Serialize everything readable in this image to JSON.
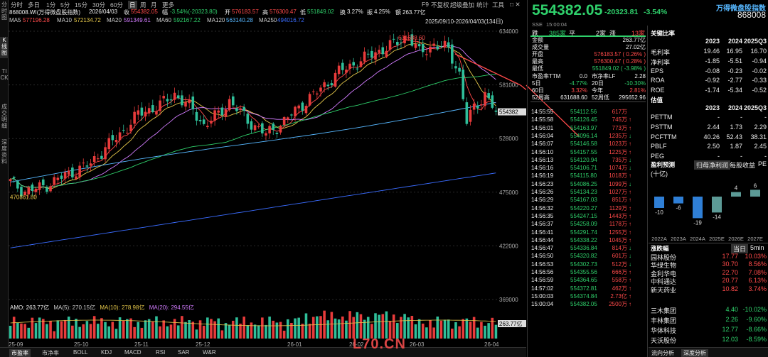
{
  "left_bar": [
    {
      "label": "分时图",
      "active": false
    },
    {
      "label": "K线图",
      "active": true
    },
    {
      "label": "TICK",
      "active": false
    },
    {
      "label": "成交明细",
      "active": false
    },
    {
      "label": "深度资料",
      "active": false
    }
  ],
  "toolbar": {
    "periods": [
      "分时",
      "多日",
      "1分",
      "5分",
      "15分",
      "30分",
      "60分",
      "日",
      "周",
      "月",
      "更多"
    ],
    "active_period": "日",
    "f9": "F9",
    "no_adjust": "不复权",
    "overlay": "超级叠加",
    "stats": "统计",
    "tools": "工具",
    "window_icons": "□ ✕"
  },
  "info_bar": {
    "code": "868008.WI(万得微盘股指数)",
    "date": "2026/04/03",
    "close_label": "收",
    "close": "554382.05",
    "change_label": "幅",
    "change": "-3.54%(-20323.80)",
    "open_label": "开",
    "open": "576183.57",
    "high_label": "高",
    "high": "576300.47",
    "low_label": "低",
    "low": "551849.02",
    "turnover_label": "换",
    "turnover": "3.27%",
    "amplitude_label": "振",
    "amplitude": "4.25%",
    "amount_label": "额",
    "amount": "263.77亿"
  },
  "ma_bar": [
    {
      "name": "MA5",
      "value": "577196.28",
      "color": "#ff4a4a"
    },
    {
      "name": "MA10",
      "value": "572134.72",
      "color": "#e6c84a"
    },
    {
      "name": "MA20",
      "value": "591349.61",
      "color": "#d27cff"
    },
    {
      "name": "MA60",
      "value": "592167.22",
      "color": "#2fd06b"
    },
    {
      "name": "MA120",
      "value": "563140.28",
      "color": "#56b7ff"
    },
    {
      "name": "MA250",
      "value": "494016.72",
      "color": "#3a6cff"
    }
  ],
  "range_label": "2025/09/10-2026/04/03(134日)",
  "chart_data": {
    "type": "candlestick",
    "y_ticks": [
      634000,
      581000,
      528000,
      475000,
      422000,
      369000
    ],
    "ylim": [
      369000,
      634000
    ],
    "high_marker": "631688.60",
    "low_marker": "470861.80",
    "last_price_label": "554382",
    "x_tick_labels": [
      "25-09",
      "25-10",
      "25-11",
      "25-12",
      "26-01",
      "26-02",
      "26-03",
      "26-04"
    ],
    "anchors": [
      {
        "i": 0,
        "p": 485000
      },
      {
        "i": 4,
        "p": 476000
      },
      {
        "i": 8,
        "p": 479000
      },
      {
        "i": 12,
        "p": 486000
      },
      {
        "i": 17,
        "p": 495000
      },
      {
        "i": 22,
        "p": 503000
      },
      {
        "i": 26,
        "p": 519000
      },
      {
        "i": 30,
        "p": 532000
      },
      {
        "i": 35,
        "p": 552000
      },
      {
        "i": 41,
        "p": 561000
      },
      {
        "i": 45,
        "p": 572000
      },
      {
        "i": 50,
        "p": 556000
      },
      {
        "i": 53,
        "p": 541000
      },
      {
        "i": 57,
        "p": 552000
      },
      {
        "i": 60,
        "p": 565000
      },
      {
        "i": 65,
        "p": 546000
      },
      {
        "i": 70,
        "p": 532000
      },
      {
        "i": 75,
        "p": 545000
      },
      {
        "i": 80,
        "p": 562000
      },
      {
        "i": 85,
        "p": 577000
      },
      {
        "i": 90,
        "p": 594000
      },
      {
        "i": 95,
        "p": 603000
      },
      {
        "i": 100,
        "p": 613000
      },
      {
        "i": 105,
        "p": 621000
      },
      {
        "i": 109,
        "p": 630000
      },
      {
        "i": 112,
        "p": 612000
      },
      {
        "i": 116,
        "p": 621000
      },
      {
        "i": 120,
        "p": 616000
      },
      {
        "i": 123,
        "p": 592000
      },
      {
        "i": 125,
        "p": 544000
      },
      {
        "i": 127,
        "p": 558000
      },
      {
        "i": 130,
        "p": 572000
      },
      {
        "i": 133,
        "p": 554382
      }
    ],
    "amo_label": "AMO: 263.77亿",
    "amo_ma5": "MA(5): 270.15亿",
    "amo_ma10": "MA(10): 278.98亿",
    "amo_ma20": "MA(20): 294.55亿",
    "amo_last_label": "263.77亿"
  },
  "bottom_tabs": [
    "市盈率",
    "市净率",
    "BOLL",
    "KDJ",
    "MACD",
    "RSI",
    "SAR",
    "W&R"
  ],
  "bottom_tabs_active": "市盈率",
  "quote": {
    "price": "554382.05",
    "change": "-20323.81",
    "pct": "-3.54%",
    "name": "万得微盘股指数",
    "code": "868008",
    "exchange": "SSE",
    "time": "15:00:04",
    "down_label": "跌",
    "down_count": "385家",
    "flat_label": "平",
    "flat_count": "2家",
    "up_label": "涨",
    "up_count": "13家",
    "rows": [
      {
        "k": "金额",
        "v": "263.77亿",
        "c": "white"
      },
      {
        "k": "成交量",
        "v": "27.02亿",
        "c": "white"
      },
      {
        "k": "开盘",
        "v": "576183.57 ( 0.26% )",
        "c": "red"
      },
      {
        "k": "最高",
        "v": "576300.47 ( 0.28% )",
        "c": "red"
      },
      {
        "k": "最低",
        "v": "551849.02 ( -3.98% )",
        "c": "green"
      }
    ],
    "grid": [
      {
        "k1": "市盈率TTM",
        "v1": "0.0",
        "c1": "white",
        "k2": "市净率LF",
        "v2": "2.28",
        "c2": "white"
      },
      {
        "k1": "5日",
        "v1": "-4.77%",
        "c1": "green",
        "k2": "20日",
        "v2": "-10.30%",
        "c2": "green"
      },
      {
        "k1": "60日",
        "v1": "3.32%",
        "c1": "red",
        "k2": "今年",
        "v2": "2.81%",
        "c2": "red"
      },
      {
        "k1": "52周高",
        "v1": "631688.60",
        "c1": "white",
        "k2": "52周低",
        "v2": "295652.96",
        "c2": "white"
      }
    ]
  },
  "ticks": [
    {
      "t": "14:55:55",
      "p": "554112.56",
      "v": "617万",
      "d": ""
    },
    {
      "t": "14:55:58",
      "p": "554126.45",
      "v": "745万",
      "d": "↑"
    },
    {
      "t": "14:56:01",
      "p": "554163.97",
      "v": "773万",
      "d": "↑"
    },
    {
      "t": "14:56:04",
      "p": "554096.14",
      "v": "1235万",
      "d": "↓"
    },
    {
      "t": "14:56:07",
      "p": "554146.58",
      "v": "1023万",
      "d": "↑"
    },
    {
      "t": "14:56:10",
      "p": "554157.55",
      "v": "1225万",
      "d": "↑"
    },
    {
      "t": "14:56:13",
      "p": "554120.94",
      "v": "735万",
      "d": "↓"
    },
    {
      "t": "14:56:16",
      "p": "554106.71",
      "v": "1074万",
      "d": "↓"
    },
    {
      "t": "14:56:19",
      "p": "554115.80",
      "v": "1018万",
      "d": "↑"
    },
    {
      "t": "14:56:23",
      "p": "554086.25",
      "v": "1099万",
      "d": "↓"
    },
    {
      "t": "14:56:26",
      "p": "554134.23",
      "v": "1027万",
      "d": "↑"
    },
    {
      "t": "14:56:29",
      "p": "554167.03",
      "v": "851万",
      "d": "↑"
    },
    {
      "t": "14:56:32",
      "p": "554220.27",
      "v": "1129万",
      "d": "↑"
    },
    {
      "t": "14:56:35",
      "p": "554247.15",
      "v": "1443万",
      "d": "↑"
    },
    {
      "t": "14:56:37",
      "p": "554258.09",
      "v": "1178万",
      "d": "↑"
    },
    {
      "t": "14:56:41",
      "p": "554291.74",
      "v": "1255万",
      "d": "↑"
    },
    {
      "t": "14:56:44",
      "p": "554338.22",
      "v": "1045万",
      "d": "↑"
    },
    {
      "t": "14:56:47",
      "p": "554336.84",
      "v": "814万",
      "d": "↓"
    },
    {
      "t": "14:56:50",
      "p": "554320.82",
      "v": "601万",
      "d": "↓"
    },
    {
      "t": "14:56:53",
      "p": "554302.73",
      "v": "512万",
      "d": "↓"
    },
    {
      "t": "14:56:56",
      "p": "554355.56",
      "v": "666万",
      "d": "↑"
    },
    {
      "t": "14:56:59",
      "p": "554364.65",
      "v": "558万",
      "d": "↑"
    },
    {
      "t": "14:57:02",
      "p": "554372.81",
      "v": "462万",
      "d": "↑"
    },
    {
      "t": "15:00:03",
      "p": "554374.84",
      "v": "2.73亿",
      "d": "↑"
    },
    {
      "t": "15:00:04",
      "p": "554382.05",
      "v": "2500万",
      "d": "↑"
    }
  ],
  "ratios": {
    "title": "关键比率",
    "years": [
      "2023",
      "2024",
      "2025Q3"
    ],
    "rows": [
      {
        "k": "毛利率",
        "v": [
          "19.46",
          "16.95",
          "16.70"
        ]
      },
      {
        "k": "净利率",
        "v": [
          "-1.85",
          "-5.51",
          "-0.94"
        ]
      },
      {
        "k": "EPS",
        "v": [
          "-0.08",
          "-0.23",
          "-0.02"
        ]
      },
      {
        "k": "ROA",
        "v": [
          "-0.92",
          "-2.77",
          "-0.33"
        ]
      },
      {
        "k": "ROE",
        "v": [
          "-1.74",
          "-5.34",
          "-0.52"
        ]
      }
    ]
  },
  "valuation": {
    "title": "估值",
    "years": [
      "2023",
      "2024",
      "2025Q3"
    ],
    "rows": [
      {
        "k": "PETTM",
        "v": [
          "-",
          "-",
          "-"
        ]
      },
      {
        "k": "PSTTM",
        "v": [
          "2.44",
          "1.73",
          "2.29"
        ]
      },
      {
        "k": "PCFTTM",
        "v": [
          "40.26",
          "52.43",
          "38.31"
        ]
      },
      {
        "k": "PBLF",
        "v": [
          "2.50",
          "1.87",
          "2.45"
        ]
      },
      {
        "k": "PEG",
        "v": [
          "-",
          "-",
          "-"
        ]
      }
    ]
  },
  "forecast": {
    "title": "盈利预测",
    "tabs": [
      "归母净利润",
      "每股收益",
      "PE"
    ],
    "active_tab": "归母净利润",
    "unit": "(十亿)",
    "years": [
      "2022A",
      "2023A",
      "2024A",
      "2025E",
      "2026E",
      "2027E"
    ],
    "values": [
      -10,
      -6,
      -19,
      -14,
      4,
      6
    ],
    "bar_colors": [
      "#2f7fd6",
      "#2f7fd6",
      "#2f7fd6",
      "#5c9a96",
      "#5c9a96",
      "#5c9a96"
    ]
  },
  "movers": {
    "title": "涨跌幅",
    "tab_today": "当日",
    "tab_5min": "5min",
    "gainers": [
      {
        "name": "园林股份",
        "price": "17.77",
        "pct": "10.03%"
      },
      {
        "name": "华绿生物",
        "price": "30.70",
        "pct": "8.56%"
      },
      {
        "name": "金利华电",
        "price": "22.70",
        "pct": "7.08%"
      },
      {
        "name": "中科通达",
        "price": "20.77",
        "pct": "6.13%"
      },
      {
        "name": "新天药业",
        "price": "10.82",
        "pct": "3.74%"
      }
    ],
    "losers": [
      {
        "name": "三木集团",
        "price": "4.40",
        "pct": "-10.02%"
      },
      {
        "name": "丰林集团",
        "price": "2.26",
        "pct": "-9.60%"
      },
      {
        "name": "华体科技",
        "price": "12.77",
        "pct": "-8.66%"
      },
      {
        "name": "天沃股份",
        "price": "12.03",
        "pct": "-8.59%"
      }
    ]
  },
  "right_bottom_tabs": [
    "流向分析",
    "深度分析"
  ],
  "right_bottom_active": "深度分析",
  "watermark": "L70.CN"
}
